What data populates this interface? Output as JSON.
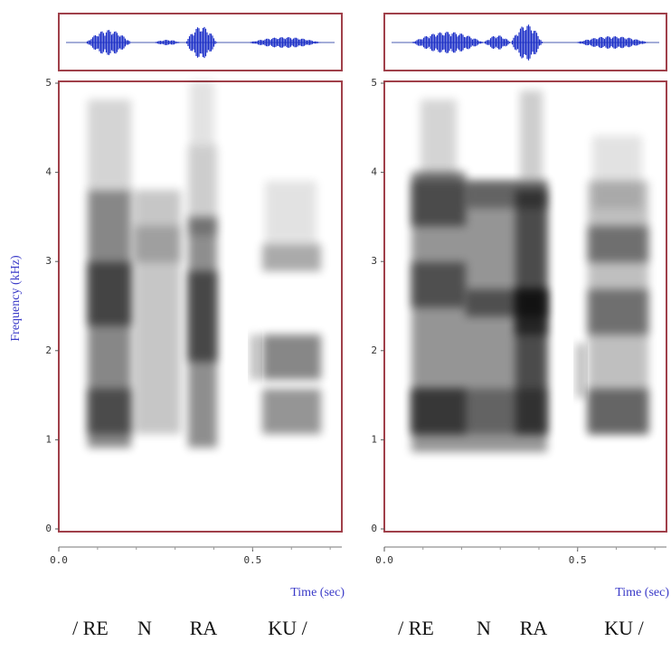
{
  "chart_data": [
    {
      "type": "spectrogram",
      "ylabel": "Frequency (kHz)",
      "xlabel": "Time (sec)",
      "xlim": [
        0,
        0.73
      ],
      "xticks": [
        {
          "value": 0,
          "label": "0.0"
        },
        0.5
      ],
      "ylim": [
        0,
        5
      ],
      "yticks": [
        0,
        1,
        2,
        3,
        4,
        5
      ],
      "phonemes": [
        "/ RE",
        "N",
        "RA",
        "KU /"
      ]
    },
    {
      "type": "spectrogram",
      "xlabel": "Time (sec)",
      "xlim": [
        0,
        0.73
      ],
      "xticks": [
        {
          "value": 0,
          "label": "0.0"
        },
        0.5
      ],
      "ylim": [
        0,
        5
      ],
      "yticks": [
        0,
        1,
        2,
        3,
        4,
        5
      ],
      "phonemes": [
        "/ RE",
        "N",
        "RA",
        "KU /"
      ]
    }
  ]
}
